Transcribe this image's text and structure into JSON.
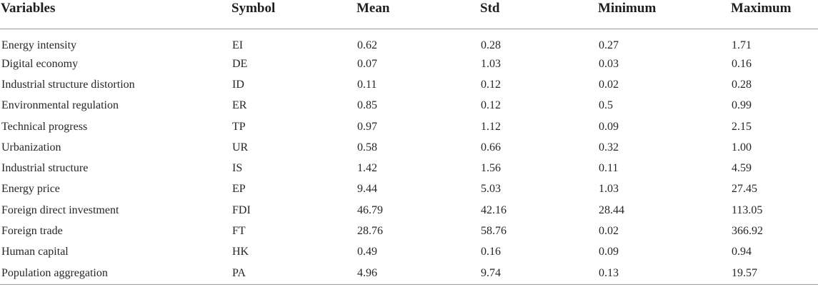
{
  "table": {
    "headers": [
      "Variables",
      "Symbol",
      "Mean",
      "Std",
      "Minimum",
      "Maximum"
    ],
    "rows": [
      [
        "Energy intensity",
        "EI",
        "0.62",
        "0.28",
        "0.27",
        "1.71"
      ],
      [
        "Digital economy",
        "DE",
        "0.07",
        "1.03",
        "0.03",
        "0.16"
      ],
      [
        "Industrial structure distortion",
        "ID",
        "0.11",
        "0.12",
        "0.02",
        "0.28"
      ],
      [
        "Environmental regulation",
        "ER",
        "0.85",
        "0.12",
        "0.5",
        "0.99"
      ],
      [
        "Technical progress",
        "TP",
        "0.97",
        "1.12",
        "0.09",
        "2.15"
      ],
      [
        "Urbanization",
        "UR",
        "0.58",
        "0.66",
        "0.32",
        "1.00"
      ],
      [
        "Industrial structure",
        "IS",
        "1.42",
        "1.56",
        "0.11",
        "4.59"
      ],
      [
        "Energy price",
        "EP",
        "9.44",
        "5.03",
        "1.03",
        "27.45"
      ],
      [
        "Foreign direct investment",
        "FDI",
        "46.79",
        "42.16",
        "28.44",
        "113.05"
      ],
      [
        "Foreign trade",
        "FT",
        "28.76",
        "58.76",
        "0.02",
        "366.92"
      ],
      [
        "Human capital",
        "HK",
        "0.49",
        "0.16",
        "0.09",
        "0.94"
      ],
      [
        "Population aggregation",
        "PA",
        "4.96",
        "9.74",
        "0.13",
        "19.57"
      ]
    ]
  }
}
